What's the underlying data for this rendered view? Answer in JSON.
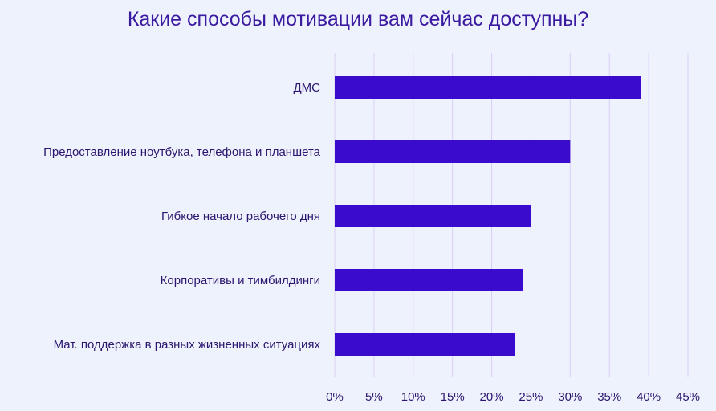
{
  "chart_data": {
    "type": "bar",
    "orientation": "horizontal",
    "title": "Какие способы мотивации вам сейчас доступны?",
    "xlabel": "",
    "ylabel": "",
    "categories": [
      "ДМС",
      "Предоставление ноутбука, телефона и планшета",
      "Гибкое начало рабочего дня",
      "Корпоративы и тимбилдинги",
      "Мат. поддержка в разных жизненных ситуациях"
    ],
    "values": [
      39,
      30,
      25,
      24,
      23
    ],
    "xlim": [
      0,
      45
    ],
    "xticks": [
      "0%",
      "5%",
      "10%",
      "15%",
      "20%",
      "25%",
      "30%",
      "35%",
      "40%",
      "45%"
    ],
    "grid": "vertical",
    "legend": "none",
    "colors": {
      "bar": "#3a0bcc",
      "grid": "#d9cdf5",
      "text": "#2c1670",
      "title": "#3a1aa0",
      "background": "#eef2fc"
    }
  }
}
